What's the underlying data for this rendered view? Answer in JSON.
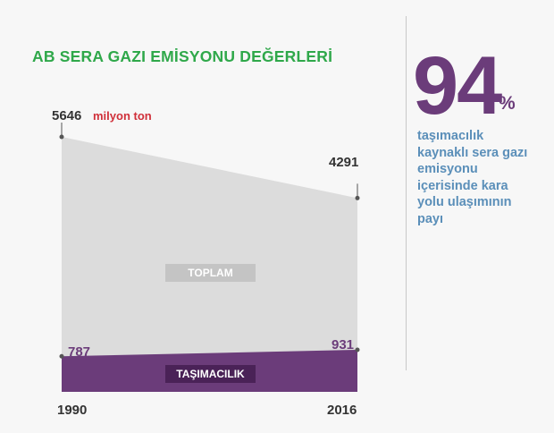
{
  "title": "AB SERA GAZI EMİSYONU DEĞERLERİ",
  "stat": {
    "value": "94",
    "unit": "%",
    "description_lines": [
      "taşımacılık",
      "kaynaklı sera gazı",
      "emisyonu",
      "içerisinde kara",
      "yolu ulaşımının",
      "payı"
    ]
  },
  "chart_data": {
    "type": "area",
    "x": [
      "1990",
      "2016"
    ],
    "unit_label": "milyon ton",
    "series": [
      {
        "name": "TOPLAM",
        "values": [
          5646,
          4291
        ],
        "color": "#dcdcdc"
      },
      {
        "name": "TAŞIMACILIK",
        "values": [
          787,
          931
        ],
        "color": "#6b3c7a"
      }
    ],
    "ylim": [
      0,
      5646
    ]
  }
}
